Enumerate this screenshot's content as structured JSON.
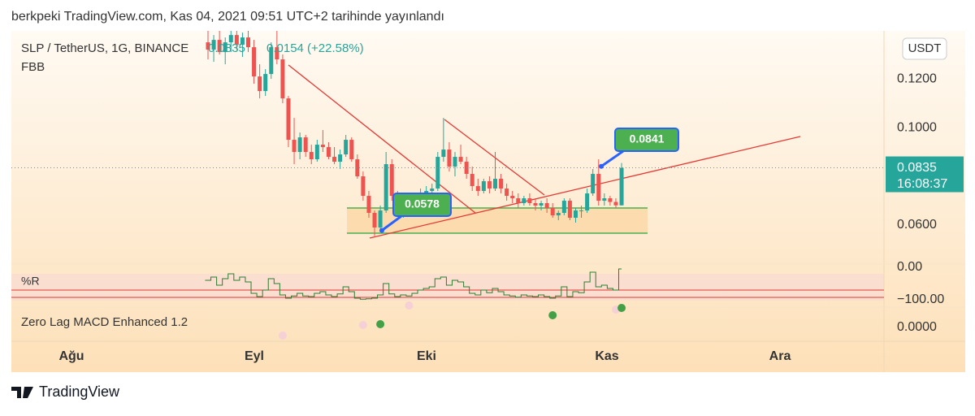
{
  "header": "berkpeki TradingView.com, Kas 04, 2021 09:51 UTC+2 tarihinde yayınlandı",
  "footer": "TradingView",
  "chart_data": {
    "type": "candlestick",
    "title": "SLP / TetherUS, 1G, BINANCE",
    "change": "0.0154 (+22.58%)",
    "indicator": "FBB",
    "currency": "USDT",
    "up_color": "#26a69a",
    "down_color": "#ef5350",
    "open": [
      0.135,
      0.132,
      0.136,
      0.131,
      0.135,
      0.138,
      0.134,
      0.137,
      0.133,
      0.121,
      0.115,
      0.122,
      0.133,
      0.128,
      0.112,
      0.095,
      0.09,
      0.096,
      0.09,
      0.087,
      0.093,
      0.092,
      0.088,
      0.086,
      0.089,
      0.095,
      0.087,
      0.08,
      0.072,
      0.065,
      0.059,
      0.066,
      0.085,
      0.072,
      0.066,
      0.067,
      0.066,
      0.068,
      0.073,
      0.074,
      0.075,
      0.088,
      0.091,
      0.084,
      0.088,
      0.086,
      0.081,
      0.076,
      0.074,
      0.078,
      0.075,
      0.079,
      0.075,
      0.072,
      0.071,
      0.069,
      0.071,
      0.069,
      0.068,
      0.069,
      0.067,
      0.064,
      0.065,
      0.07,
      0.063,
      0.066,
      0.066,
      0.073,
      0.081,
      0.07,
      0.071,
      0.0695,
      0.0681
    ],
    "high": [
      0.14,
      0.138,
      0.14,
      0.137,
      0.14,
      0.14,
      0.139,
      0.14,
      0.136,
      0.126,
      0.124,
      0.135,
      0.14,
      0.13,
      0.113,
      0.104,
      0.098,
      0.097,
      0.093,
      0.095,
      0.099,
      0.094,
      0.092,
      0.091,
      0.097,
      0.096,
      0.089,
      0.082,
      0.074,
      0.066,
      0.068,
      0.09,
      0.087,
      0.074,
      0.069,
      0.07,
      0.069,
      0.075,
      0.076,
      0.077,
      0.09,
      0.104,
      0.094,
      0.09,
      0.093,
      0.088,
      0.084,
      0.079,
      0.079,
      0.08,
      0.09,
      0.081,
      0.077,
      0.074,
      0.073,
      0.072,
      0.073,
      0.071,
      0.07,
      0.071,
      0.069,
      0.066,
      0.071,
      0.071,
      0.067,
      0.068,
      0.075,
      0.083,
      0.087,
      0.073,
      0.072,
      0.071,
      0.0855
    ],
    "low": [
      0.128,
      0.127,
      0.13,
      0.126,
      0.131,
      0.132,
      0.129,
      0.131,
      0.118,
      0.112,
      0.113,
      0.12,
      0.126,
      0.11,
      0.092,
      0.085,
      0.087,
      0.088,
      0.085,
      0.086,
      0.09,
      0.087,
      0.085,
      0.083,
      0.088,
      0.086,
      0.079,
      0.07,
      0.063,
      0.0555,
      0.057,
      0.065,
      0.07,
      0.064,
      0.063,
      0.064,
      0.064,
      0.067,
      0.07,
      0.072,
      0.074,
      0.086,
      0.082,
      0.08,
      0.085,
      0.079,
      0.074,
      0.072,
      0.073,
      0.073,
      0.074,
      0.073,
      0.07,
      0.069,
      0.067,
      0.068,
      0.068,
      0.066,
      0.066,
      0.065,
      0.063,
      0.062,
      0.064,
      0.062,
      0.061,
      0.063,
      0.065,
      0.072,
      0.068,
      0.068,
      0.068,
      0.067,
      0.068
    ],
    "close": [
      0.132,
      0.136,
      0.131,
      0.135,
      0.138,
      0.134,
      0.137,
      0.133,
      0.121,
      0.115,
      0.122,
      0.133,
      0.128,
      0.112,
      0.095,
      0.09,
      0.096,
      0.09,
      0.087,
      0.093,
      0.092,
      0.088,
      0.086,
      0.089,
      0.095,
      0.087,
      0.08,
      0.072,
      0.065,
      0.059,
      0.066,
      0.085,
      0.072,
      0.066,
      0.067,
      0.066,
      0.068,
      0.073,
      0.074,
      0.075,
      0.088,
      0.091,
      0.084,
      0.088,
      0.086,
      0.081,
      0.076,
      0.074,
      0.078,
      0.075,
      0.079,
      0.075,
      0.072,
      0.071,
      0.069,
      0.071,
      0.069,
      0.068,
      0.069,
      0.067,
      0.064,
      0.065,
      0.07,
      0.063,
      0.066,
      0.066,
      0.073,
      0.081,
      0.07,
      0.071,
      0.0695,
      0.0681,
      0.0835
    ],
    "ylim": [
      0.044,
      0.1397
    ],
    "yticks": [
      {
        "value": 0.06,
        "label": "0.0600"
      },
      {
        "value": 0.1,
        "label": "0.1000"
      },
      {
        "value": 0.12,
        "label": "0.1200"
      }
    ],
    "last_price": 0.0835,
    "countdown": "16:08:37",
    "annotations": [
      0.0841,
      0.0578
    ],
    "x_labels": [
      "Ağu",
      "Eyl",
      "Eki",
      "Kas",
      "Ara"
    ],
    "panels": [
      {
        "type": "line",
        "name": "%R",
        "color": "#2e7d32",
        "values": [
          -40,
          -30,
          -55,
          -35,
          -20,
          -40,
          -30,
          -45,
          -80,
          -90,
          -70,
          -35,
          -50,
          -85,
          -95,
          -88,
          -80,
          -88,
          -90,
          -80,
          -75,
          -85,
          -90,
          -82,
          -60,
          -75,
          -95,
          -98,
          -97,
          -95,
          -85,
          -50,
          -82,
          -90,
          -85,
          -88,
          -80,
          -70,
          -65,
          -60,
          -35,
          -30,
          -55,
          -40,
          -45,
          -60,
          -80,
          -85,
          -70,
          -78,
          -65,
          -75,
          -85,
          -88,
          -92,
          -85,
          -88,
          -90,
          -85,
          -90,
          -95,
          -88,
          -60,
          -90,
          -75,
          -78,
          -45,
          -15,
          -60,
          -55,
          -65,
          -70,
          -5
        ],
        "ylim": [
          -122.5,
          7.5
        ],
        "yticks": [
          {
            "value": 0,
            "label": "0.00"
          },
          {
            "value": -100,
            "label": "−100.00"
          }
        ],
        "levels": [
          -70,
          -92.5
        ],
        "level_color": "#e53935"
      },
      {
        "type": "scatter",
        "name": "Zero Lag MACD Enhanced 1.2",
        "ylim": [
          -0.0017,
          0.0025
        ],
        "yticks": [
          {
            "value": 0,
            "label": "0.0000"
          }
        ],
        "series": [
          {
            "color": "#f5d0d6",
            "values": [
              null,
              null,
              null,
              null,
              null,
              null,
              null,
              null,
              null,
              null,
              null,
              null,
              null,
              -0.001,
              null,
              null,
              null,
              null,
              null,
              null,
              null,
              null,
              null,
              null,
              null,
              null,
              null,
              0.0003,
              null,
              null,
              null,
              null,
              null,
              null,
              null,
              0.0027,
              null,
              null,
              null,
              null,
              null,
              null,
              null,
              null,
              null,
              null,
              null,
              null,
              null,
              null,
              null,
              null,
              null,
              null,
              null,
              null,
              null,
              null,
              null,
              null,
              null,
              null,
              null,
              null,
              null,
              null,
              null,
              null,
              null,
              null,
              null,
              0.0022,
              null
            ]
          },
          {
            "color": "#43a047",
            "values": [
              null,
              null,
              null,
              null,
              null,
              null,
              null,
              null,
              null,
              null,
              null,
              null,
              null,
              null,
              null,
              null,
              null,
              null,
              null,
              null,
              null,
              null,
              null,
              null,
              null,
              null,
              null,
              null,
              null,
              null,
              0.0004,
              null,
              null,
              null,
              null,
              null,
              null,
              null,
              null,
              null,
              null,
              null,
              null,
              null,
              null,
              null,
              null,
              null,
              null,
              null,
              null,
              null,
              null,
              null,
              null,
              null,
              null,
              null,
              null,
              null,
              0.0015,
              null,
              null,
              null,
              null,
              null,
              null,
              null,
              null,
              null,
              null,
              null,
              0.0024
            ]
          }
        ]
      }
    ]
  }
}
